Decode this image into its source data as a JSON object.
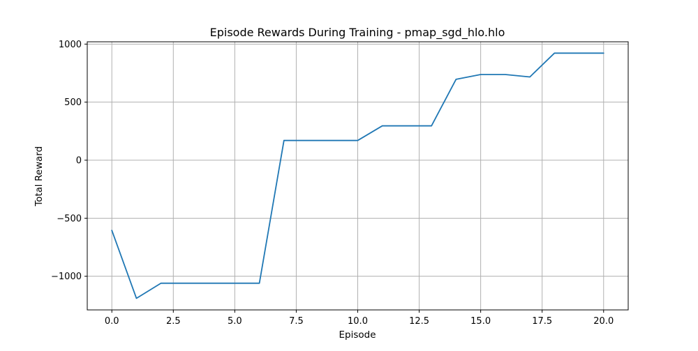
{
  "chart_data": {
    "type": "line",
    "title": "Episode Rewards During Training - pmap_sgd_hlo.hlo",
    "xlabel": "Episode",
    "ylabel": "Total Reward",
    "xlim": [
      -1,
      21
    ],
    "ylim": [
      -1290,
      1020
    ],
    "xticks": [
      0.0,
      2.5,
      5.0,
      7.5,
      10.0,
      12.5,
      15.0,
      17.5,
      20.0
    ],
    "xtick_labels": [
      "0.0",
      "2.5",
      "5.0",
      "7.5",
      "10.0",
      "12.5",
      "15.0",
      "17.5",
      "20.0"
    ],
    "yticks": [
      -1000,
      -500,
      0,
      500,
      1000
    ],
    "ytick_labels": [
      "−1000",
      "−500",
      "0",
      "500",
      "1000"
    ],
    "grid": true,
    "line_color": "#1f77b4",
    "series": [
      {
        "x": [
          0,
          1,
          2,
          3,
          4,
          5,
          6,
          7,
          8,
          9,
          10,
          11,
          12,
          13,
          14,
          15,
          16,
          17,
          18,
          19,
          20
        ],
        "values": [
          -605,
          -1190,
          -1060,
          -1060,
          -1060,
          -1060,
          -1060,
          170,
          170,
          170,
          170,
          296,
          296,
          296,
          697,
          738,
          738,
          717,
          922,
          922,
          922
        ]
      }
    ]
  }
}
